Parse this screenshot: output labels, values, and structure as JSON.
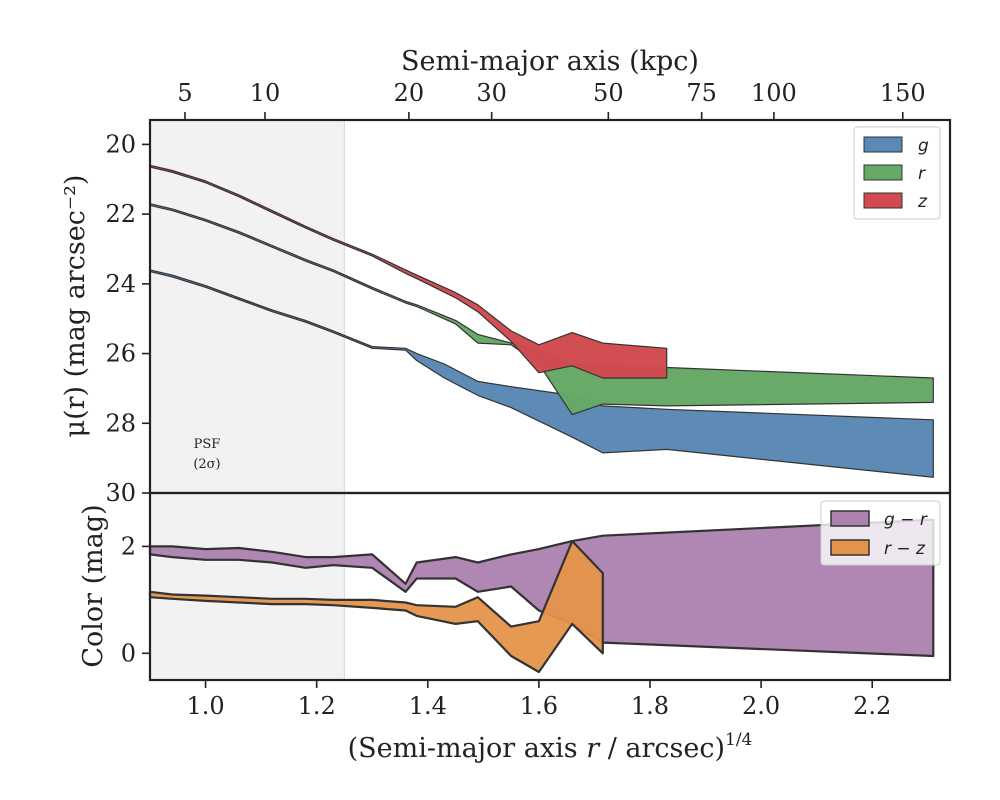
{
  "chart_data": [
    {
      "panel": "surface-brightness",
      "type": "area",
      "top_axis": {
        "label": "Semi-major axis (kpc)",
        "ticks": [
          5,
          10,
          20,
          30,
          50,
          75,
          100,
          150
        ],
        "tick_positions_x": [
          0.963,
          1.107,
          1.366,
          1.515,
          1.725,
          1.893,
          2.023,
          2.255
        ]
      },
      "ylabel": "μ(r) (mag arcsec⁻²)",
      "ylim": [
        30,
        19.3
      ],
      "xlim": [
        0.9,
        2.34
      ],
      "yticks": [
        20,
        22,
        24,
        26,
        28,
        30
      ],
      "psf_region": {
        "x_max": 1.25,
        "label_line1": "PSF",
        "label_line2": "(2σ)"
      },
      "legend": {
        "position": "top-right"
      },
      "series": [
        {
          "name": "g",
          "color": "#5a89b5",
          "x": [
            0.9,
            0.94,
            1.0,
            1.06,
            1.12,
            1.18,
            1.23,
            1.3,
            1.36,
            1.38,
            1.43,
            1.49,
            1.55,
            1.66,
            1.715,
            1.83,
            2.31
          ],
          "y_upper": [
            23.6,
            23.75,
            24.05,
            24.4,
            24.75,
            25.05,
            25.35,
            25.8,
            25.85,
            26.0,
            26.3,
            26.8,
            26.95,
            27.2,
            27.5,
            27.6,
            27.9
          ],
          "y_lower": [
            23.65,
            23.8,
            24.1,
            24.45,
            24.8,
            25.1,
            25.4,
            25.85,
            25.9,
            26.2,
            26.7,
            27.2,
            27.55,
            28.4,
            28.85,
            28.75,
            29.55
          ]
        },
        {
          "name": "r",
          "color": "#66a866",
          "x": [
            0.9,
            0.94,
            1.0,
            1.06,
            1.12,
            1.18,
            1.23,
            1.3,
            1.36,
            1.38,
            1.45,
            1.49,
            1.55,
            1.6,
            1.66,
            1.715,
            1.83,
            2.31
          ],
          "y_upper": [
            21.7,
            21.85,
            22.15,
            22.5,
            22.9,
            23.3,
            23.6,
            24.1,
            24.5,
            24.6,
            25.05,
            25.45,
            25.7,
            25.9,
            26.3,
            26.35,
            26.4,
            26.7
          ],
          "y_lower": [
            21.75,
            21.9,
            22.2,
            22.55,
            22.95,
            23.35,
            23.65,
            24.15,
            24.55,
            24.65,
            25.15,
            25.7,
            25.75,
            26.3,
            27.75,
            27.45,
            27.5,
            27.4
          ]
        },
        {
          "name": "z",
          "color": "#d04a4f",
          "x": [
            0.9,
            0.94,
            1.0,
            1.06,
            1.12,
            1.18,
            1.23,
            1.3,
            1.36,
            1.38,
            1.45,
            1.49,
            1.55,
            1.6,
            1.66,
            1.715,
            1.83
          ],
          "y_upper": [
            20.6,
            20.75,
            21.05,
            21.45,
            21.9,
            22.35,
            22.7,
            23.15,
            23.6,
            23.75,
            24.25,
            24.6,
            25.35,
            25.75,
            25.4,
            25.7,
            25.85
          ],
          "y_lower": [
            20.65,
            20.8,
            21.1,
            21.5,
            21.95,
            22.4,
            22.75,
            23.2,
            23.7,
            23.85,
            24.4,
            24.8,
            25.65,
            26.55,
            26.35,
            26.7,
            26.7
          ]
        }
      ]
    },
    {
      "panel": "color-profile",
      "type": "area",
      "xlabel": "(Semi-major axis r / arcsec)^1/4",
      "xlabel_main": "(Semi-major axis ",
      "xlabel_var": "r",
      "xlabel_tail": " / arcsec)",
      "xlabel_sup": "1/4",
      "ylabel": "Color (mag)",
      "ylim": [
        -0.5,
        3.0
      ],
      "xlim": [
        0.9,
        2.34
      ],
      "xticks": [
        1.0,
        1.2,
        1.4,
        1.6,
        1.8,
        2.0,
        2.2
      ],
      "xtick_labels": [
        "1.0",
        "1.2",
        "1.4",
        "1.6",
        "1.8",
        "2.0",
        "2.2"
      ],
      "yticks": [
        0,
        2
      ],
      "legend": {
        "position": "top-right"
      },
      "series": [
        {
          "name": "g − r",
          "color": "#ac81af",
          "x": [
            0.9,
            0.94,
            1.0,
            1.06,
            1.12,
            1.18,
            1.23,
            1.3,
            1.36,
            1.38,
            1.45,
            1.49,
            1.55,
            1.6,
            1.66,
            1.715,
            2.31
          ],
          "y_upper": [
            2.0,
            2.0,
            1.95,
            1.97,
            1.9,
            1.8,
            1.8,
            1.85,
            1.3,
            1.7,
            1.8,
            1.7,
            1.85,
            1.95,
            2.1,
            2.2,
            2.5
          ],
          "y_lower": [
            1.85,
            1.8,
            1.75,
            1.75,
            1.7,
            1.6,
            1.65,
            1.6,
            1.15,
            1.4,
            1.4,
            1.15,
            1.25,
            0.8,
            0.55,
            0.2,
            -0.05
          ]
        },
        {
          "name": "r − z",
          "color": "#e4944a",
          "x": [
            0.9,
            0.94,
            1.0,
            1.06,
            1.12,
            1.18,
            1.23,
            1.3,
            1.36,
            1.38,
            1.45,
            1.49,
            1.55,
            1.6,
            1.66,
            1.715
          ],
          "y_upper": [
            1.15,
            1.1,
            1.08,
            1.05,
            1.02,
            1.02,
            1.0,
            1.0,
            0.95,
            0.9,
            0.87,
            1.05,
            0.5,
            0.6,
            2.1,
            1.5
          ],
          "y_lower": [
            1.05,
            1.02,
            0.98,
            0.95,
            0.92,
            0.92,
            0.9,
            0.85,
            0.8,
            0.7,
            0.55,
            0.6,
            -0.05,
            -0.35,
            0.55,
            0.0
          ]
        }
      ]
    }
  ]
}
